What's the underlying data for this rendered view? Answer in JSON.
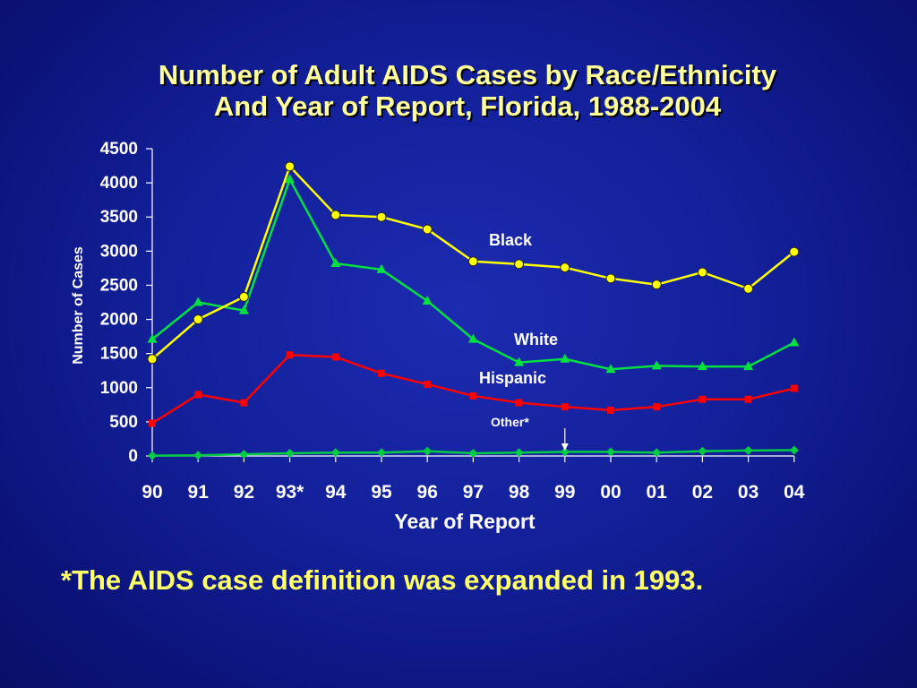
{
  "colors": {
    "background": "#13209a",
    "title": "#ffff99",
    "text": "#ffffff",
    "axis": "#ffffff",
    "footnote": "#ffff66"
  },
  "chart_data": {
    "type": "line",
    "title_line1": "Number of Adult AIDS Cases by Race/Ethnicity",
    "title_line2": "And Year of Report, Florida, 1988-2004",
    "xlabel": "Year of Report",
    "ylabel": "Number of Cases",
    "categories": [
      "90",
      "91",
      "92",
      "93*",
      "94",
      "95",
      "96",
      "97",
      "98",
      "99",
      "00",
      "01",
      "02",
      "03",
      "04"
    ],
    "ylim": [
      0,
      4500
    ],
    "yticks": [
      0,
      500,
      1000,
      1500,
      2000,
      2500,
      3000,
      3500,
      4000,
      4500
    ],
    "grid": false,
    "legend": "inline labels",
    "series": [
      {
        "name": "Black",
        "color": "#ffff00",
        "marker": "circle",
        "values": [
          1420,
          2000,
          2330,
          4240,
          3530,
          3500,
          3320,
          2850,
          2810,
          2760,
          2600,
          2510,
          2690,
          2450,
          2990
        ]
      },
      {
        "name": "White",
        "color": "#00e040",
        "marker": "triangle",
        "values": [
          1710,
          2250,
          2130,
          4050,
          2820,
          2730,
          2270,
          1710,
          1370,
          1420,
          1270,
          1320,
          1310,
          1310,
          1660
        ]
      },
      {
        "name": "Hispanic",
        "color": "#ff0000",
        "marker": "square",
        "values": [
          480,
          900,
          780,
          1480,
          1450,
          1210,
          1050,
          880,
          780,
          720,
          670,
          720,
          830,
          830,
          990
        ]
      },
      {
        "name": "Other*",
        "color": "#00cc44",
        "marker": "diamond",
        "values": [
          5,
          10,
          25,
          40,
          50,
          50,
          70,
          40,
          50,
          60,
          60,
          50,
          70,
          80,
          85
        ]
      }
    ],
    "footnote": "*The AIDS case definition was expanded in 1993."
  }
}
